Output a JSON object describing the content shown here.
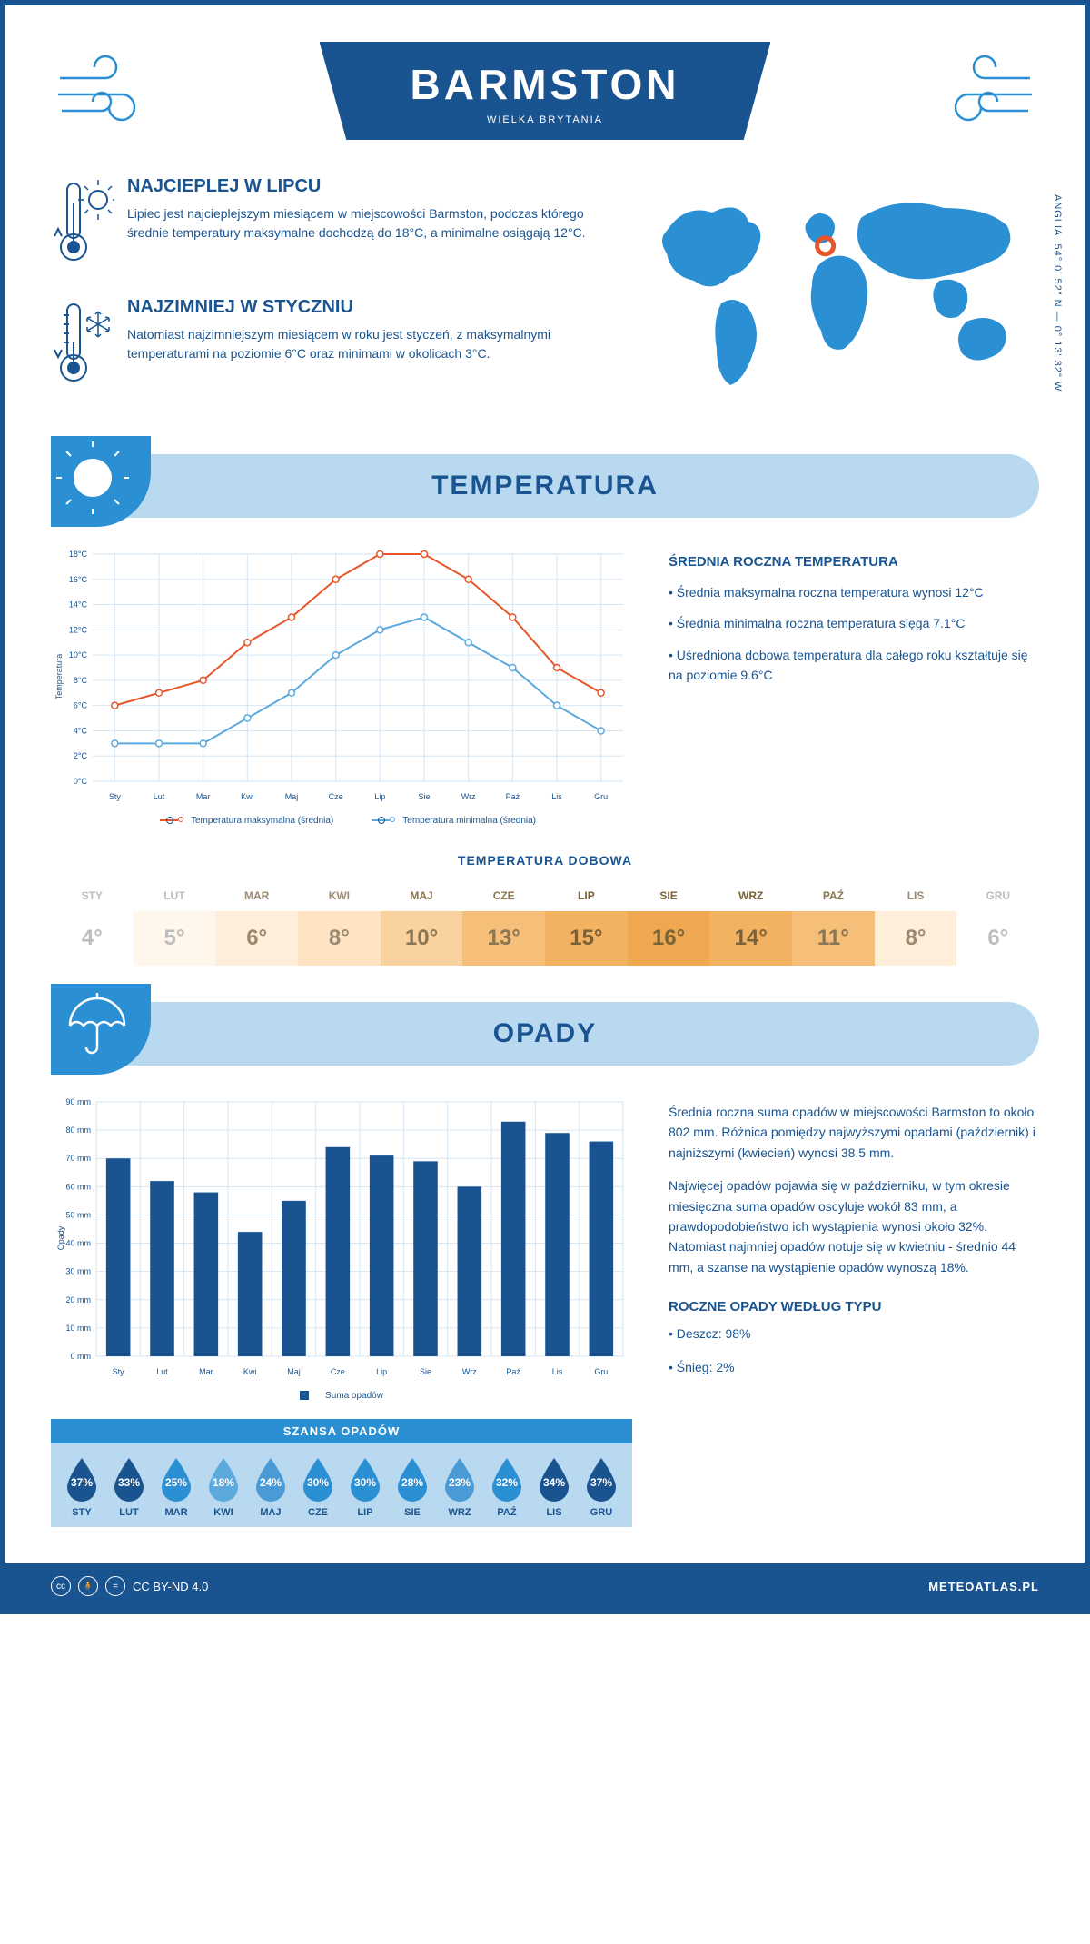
{
  "header": {
    "title": "BARMSTON",
    "subtitle": "WIELKA BRYTANIA",
    "deco_color": "#2b8fd4"
  },
  "coords": {
    "text": "54° 0' 52\" N — 0° 13' 32\" W",
    "region": "ANGLIA"
  },
  "warmest": {
    "title": "NAJCIEPLEJ W LIPCU",
    "text": "Lipiec jest najcieplejszym miesiącem w miejscowości Barmston, podczas którego średnie temperatury maksymalne dochodzą do 18°C, a minimalne osiągają 12°C."
  },
  "coldest": {
    "title": "NAJZIMNIEJ W STYCZNIU",
    "text": "Natomiast najzimniejszym miesiącem w roku jest styczeń, z maksymalnymi temperaturami na poziomie 6°C oraz minimami w okolicach 3°C."
  },
  "map": {
    "marker_lon_pct": 46.5,
    "marker_lat_pct": 32,
    "land_color": "#2b8fd4",
    "marker_color": "#e8552b"
  },
  "temp_section": {
    "banner": "TEMPERATURA",
    "chart": {
      "type": "line",
      "months": [
        "Sty",
        "Lut",
        "Mar",
        "Kwi",
        "Maj",
        "Cze",
        "Lip",
        "Sie",
        "Wrz",
        "Paź",
        "Lis",
        "Gru"
      ],
      "series": [
        {
          "name": "Temperatura maksymalna (średnia)",
          "color": "#e8552b",
          "values": [
            6,
            7,
            8,
            11,
            13,
            16,
            18,
            18,
            16,
            13,
            9,
            7
          ]
        },
        {
          "name": "Temperatura minimalna (średnia)",
          "color": "#5ca9dd",
          "values": [
            3,
            3,
            3,
            5,
            7,
            10,
            12,
            13,
            11,
            9,
            6,
            4
          ]
        }
      ],
      "y_label": "Temperatura",
      "ylim": [
        0,
        18
      ],
      "ytick_step": 2,
      "y_unit": "°C",
      "grid_color": "#d6e6f3",
      "background_color": "#ffffff",
      "axis_fontsize": 9,
      "line_width": 2,
      "marker": "circle"
    },
    "side": {
      "title": "ŚREDNIA ROCZNA TEMPERATURA",
      "bullets": [
        "• Średnia maksymalna roczna temperatura wynosi 12°C",
        "• Średnia minimalna roczna temperatura sięga 7.1°C",
        "• Uśredniona dobowa temperatura dla całego roku kształtuje się na poziomie 9.6°C"
      ]
    },
    "daily": {
      "title": "TEMPERATURA DOBOWA",
      "months": [
        "STY",
        "LUT",
        "MAR",
        "KWI",
        "MAJ",
        "CZE",
        "LIP",
        "SIE",
        "WRZ",
        "PAŹ",
        "LIS",
        "GRU"
      ],
      "values": [
        "4°",
        "5°",
        "6°",
        "8°",
        "10°",
        "13°",
        "15°",
        "16°",
        "14°",
        "11°",
        "8°",
        "6°"
      ],
      "bg_colors": [
        "#ffffff",
        "#fff7ec",
        "#ffeeda",
        "#ffe3c2",
        "#fad29f",
        "#f5bf7a",
        "#f2b262",
        "#efa84f",
        "#f2b262",
        "#f5bf7a",
        "#ffeeda",
        "#ffffff"
      ],
      "text_colors": [
        "#bdbdbd",
        "#bdbdbd",
        "#9a8a72",
        "#9a8a72",
        "#8a7652",
        "#8a7652",
        "#7a6238",
        "#7a6238",
        "#7a6238",
        "#8a7652",
        "#9a8a72",
        "#bdbdbd"
      ]
    }
  },
  "precip_section": {
    "banner": "OPADY",
    "chart": {
      "type": "bar",
      "months": [
        "Sty",
        "Lut",
        "Mar",
        "Kwi",
        "Maj",
        "Cze",
        "Lip",
        "Sie",
        "Wrz",
        "Paź",
        "Lis",
        "Gru"
      ],
      "values": [
        70,
        62,
        58,
        44,
        55,
        74,
        71,
        69,
        60,
        83,
        79,
        76
      ],
      "bar_color": "#1a5490",
      "y_label": "Opady",
      "ylim": [
        0,
        90
      ],
      "ytick_step": 10,
      "y_unit": " mm",
      "grid_color": "#d6e6f3",
      "legend": "Suma opadów",
      "bar_width_ratio": 0.55
    },
    "text1": "Średnia roczna suma opadów w miejscowości Barmston to około 802 mm. Różnica pomiędzy najwyższymi opadami (październik) i najniższymi (kwiecień) wynosi 38.5 mm.",
    "text2": "Najwięcej opadów pojawia się w październiku, w tym okresie miesięczna suma opadów oscyluje wokół 83 mm, a prawdopodobieństwo ich wystąpienia wynosi około 32%. Natomiast najmniej opadów notuje się w kwietniu - średnio 44 mm, a szanse na wystąpienie opadów wynoszą 18%.",
    "chance": {
      "title": "SZANSA OPADÓW",
      "months": [
        "STY",
        "LUT",
        "MAR",
        "KWI",
        "MAJ",
        "CZE",
        "LIP",
        "SIE",
        "WRZ",
        "PAŹ",
        "LIS",
        "GRU"
      ],
      "pct": [
        37,
        33,
        25,
        18,
        24,
        30,
        30,
        28,
        23,
        32,
        34,
        37
      ],
      "colors": [
        "#1a5490",
        "#1a5490",
        "#2b8fd4",
        "#5ca9dd",
        "#4a9bd5",
        "#2b8fd4",
        "#2b8fd4",
        "#2b8fd4",
        "#4a9bd5",
        "#2b8fd4",
        "#1a5490",
        "#1a5490"
      ]
    },
    "bytype": {
      "title": "ROCZNE OPADY WEDŁUG TYPU",
      "items": [
        "• Deszcz: 98%",
        "• Śnieg: 2%"
      ]
    }
  },
  "footer": {
    "license": "CC BY-ND 4.0",
    "brand": "METEOATLAS.PL"
  },
  "colors": {
    "primary": "#1a5490",
    "light": "#b8d9f0",
    "mid": "#2b8fd4"
  }
}
